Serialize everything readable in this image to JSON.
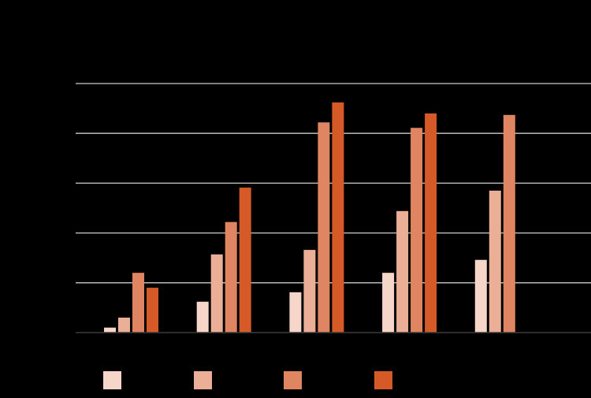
{
  "chart_data": {
    "type": "bar",
    "title": "",
    "xlabel": "",
    "ylabel": "",
    "categories": [
      "",
      "",
      "",
      "",
      ""
    ],
    "series": [
      {
        "name": "",
        "color": "#f5d6c8",
        "values": [
          0.1,
          0.62,
          0.81,
          1.2,
          1.46
        ]
      },
      {
        "name": "",
        "color": "#ebae96",
        "values": [
          0.3,
          1.57,
          1.66,
          2.44,
          2.85
        ]
      },
      {
        "name": "",
        "color": "#e08562",
        "values": [
          1.2,
          2.22,
          4.22,
          4.11,
          4.37
        ]
      },
      {
        "name": "",
        "color": "#d65a28",
        "values": [
          0.9,
          2.91,
          4.62,
          4.4,
          null
        ]
      }
    ],
    "ylim": [
      0,
      5
    ],
    "yticks": [
      0,
      1,
      2,
      3,
      4,
      5
    ],
    "grid": true,
    "legend_position": "bottom",
    "note": "Tick labels, category labels and legend text are rendered black-on-black and not legible; values are in gridline units."
  },
  "style": {
    "background": "#000000",
    "gridline_color": "#cccccc",
    "baseline_color": "#3a3a3a"
  }
}
